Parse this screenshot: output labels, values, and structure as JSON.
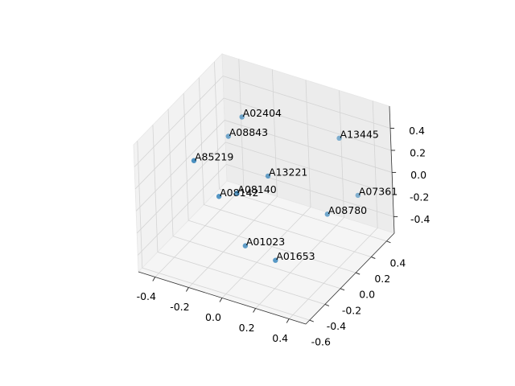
{
  "chart_data": {
    "type": "scatter3d",
    "labels": [
      "A02404",
      "A08843",
      "A13445",
      "A85219",
      "A13221",
      "A08142",
      "A08140",
      "A07361",
      "A08780",
      "A01023",
      "A01653"
    ],
    "x": [
      -0.23,
      -0.37,
      0.3,
      -0.25,
      0.03,
      -0.16,
      -0.22,
      0.4,
      0.38,
      -0.07,
      0.22
    ],
    "y": [
      0.16,
      0.27,
      0.27,
      -0.42,
      -0.08,
      -0.31,
      0.04,
      0.27,
      -0.08,
      -0.19,
      -0.42
    ],
    "z": [
      0.4,
      0.08,
      0.38,
      0.41,
      0.16,
      0.05,
      -0.2,
      -0.09,
      -0.02,
      -0.44,
      -0.27
    ],
    "color": "#1f77b4",
    "xlim": [
      -0.5,
      0.5
    ],
    "ylim": [
      -0.65,
      0.5
    ],
    "zlim": [
      -0.55,
      0.6
    ],
    "xticks": [
      -0.4,
      -0.2,
      0.0,
      0.2,
      0.4
    ],
    "yticks": [
      -0.6,
      -0.4,
      -0.2,
      0.0,
      0.2,
      0.4
    ],
    "zticks": [
      -0.4,
      -0.2,
      0.0,
      0.2,
      0.4
    ],
    "grid": true
  }
}
